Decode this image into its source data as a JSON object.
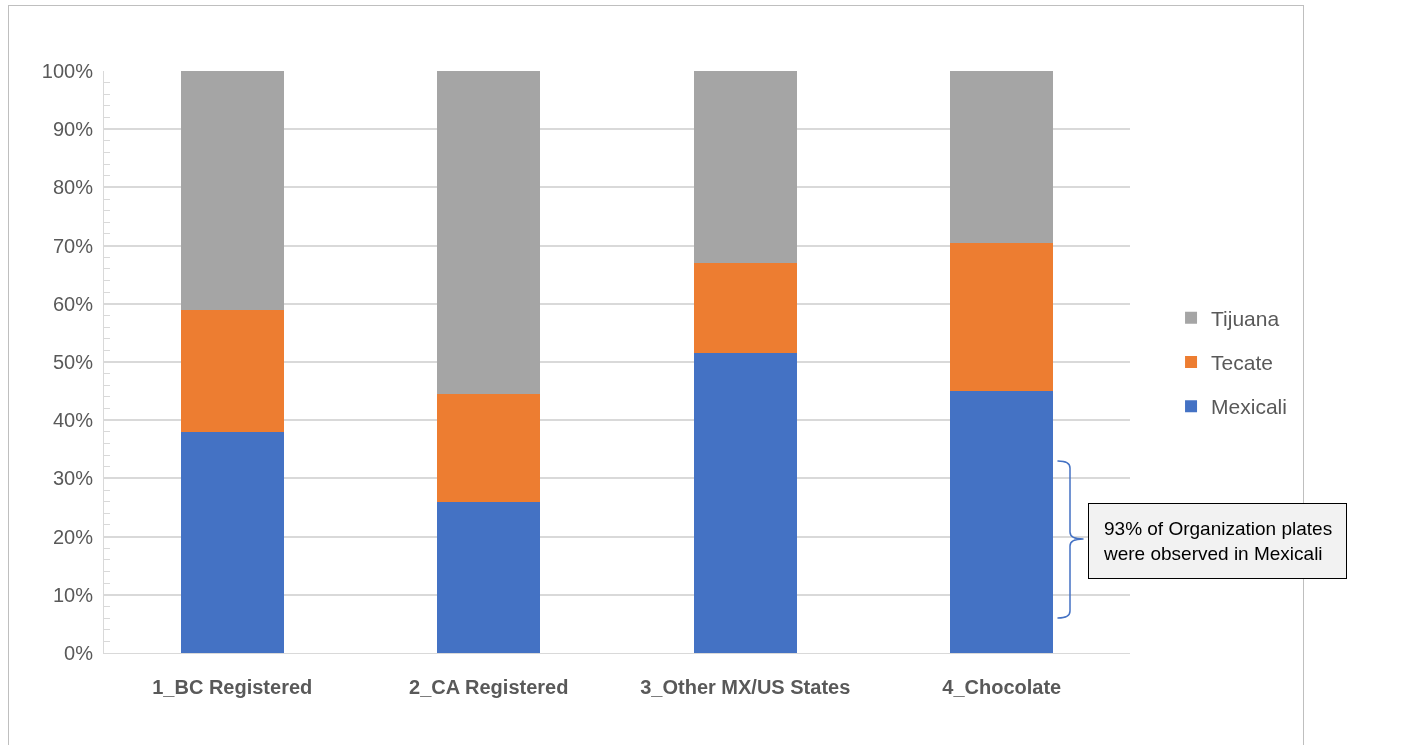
{
  "chart_data": {
    "type": "bar",
    "categories": [
      "1_BC Registered",
      "2_CA Registered",
      "3_Other MX/US States",
      "4_Chocolate"
    ],
    "series": [
      {
        "name": "Mexicali",
        "color": "#4472c4",
        "values": [
          38,
          26,
          51.5,
          45
        ]
      },
      {
        "name": "Tecate",
        "color": "#ed7d31",
        "values": [
          21,
          18.5,
          15.5,
          25.5
        ]
      },
      {
        "name": "Tijuana",
        "color": "#a5a5a5",
        "values": [
          41,
          55.5,
          33,
          29.5
        ]
      }
    ],
    "stacked": true,
    "ylim": [
      0,
      100
    ],
    "yticks": [
      {
        "value": 0,
        "label": "0%"
      },
      {
        "value": 2,
        "label": null
      },
      {
        "value": 4,
        "label": null
      },
      {
        "value": 6,
        "label": null
      },
      {
        "value": 8,
        "label": null
      },
      {
        "value": 10,
        "label": "10%"
      },
      {
        "value": 12,
        "label": null
      },
      {
        "value": 14,
        "label": null
      },
      {
        "value": 16,
        "label": null
      },
      {
        "value": 18,
        "label": null
      },
      {
        "value": 20,
        "label": "20%"
      },
      {
        "value": 22,
        "label": null
      },
      {
        "value": 24,
        "label": null
      },
      {
        "value": 26,
        "label": null
      },
      {
        "value": 28,
        "label": null
      },
      {
        "value": 30,
        "label": "30%"
      },
      {
        "value": 32,
        "label": null
      },
      {
        "value": 34,
        "label": null
      },
      {
        "value": 36,
        "label": null
      },
      {
        "value": 38,
        "label": null
      },
      {
        "value": 40,
        "label": "40%"
      },
      {
        "value": 42,
        "label": null
      },
      {
        "value": 44,
        "label": null
      },
      {
        "value": 46,
        "label": null
      },
      {
        "value": 48,
        "label": null
      },
      {
        "value": 50,
        "label": "50%"
      },
      {
        "value": 52,
        "label": null
      },
      {
        "value": 54,
        "label": null
      },
      {
        "value": 56,
        "label": null
      },
      {
        "value": 58,
        "label": null
      },
      {
        "value": 60,
        "label": "60%"
      },
      {
        "value": 62,
        "label": null
      },
      {
        "value": 64,
        "label": null
      },
      {
        "value": 66,
        "label": null
      },
      {
        "value": 68,
        "label": null
      },
      {
        "value": 70,
        "label": "70%"
      },
      {
        "value": 72,
        "label": null
      },
      {
        "value": 74,
        "label": null
      },
      {
        "value": 76,
        "label": null
      },
      {
        "value": 78,
        "label": null
      },
      {
        "value": 80,
        "label": "80%"
      },
      {
        "value": 82,
        "label": null
      },
      {
        "value": 84,
        "label": null
      },
      {
        "value": 86,
        "label": null
      },
      {
        "value": 88,
        "label": null
      },
      {
        "value": 90,
        "label": "90%"
      },
      {
        "value": 92,
        "label": null
      },
      {
        "value": 94,
        "label": null
      },
      {
        "value": 96,
        "label": null
      },
      {
        "value": 98,
        "label": null
      },
      {
        "value": 100,
        "label": "100%"
      }
    ],
    "grid": "y",
    "legend": "right",
    "annotations": [
      "93% of Organization plates were observed in Mexicali"
    ]
  }
}
